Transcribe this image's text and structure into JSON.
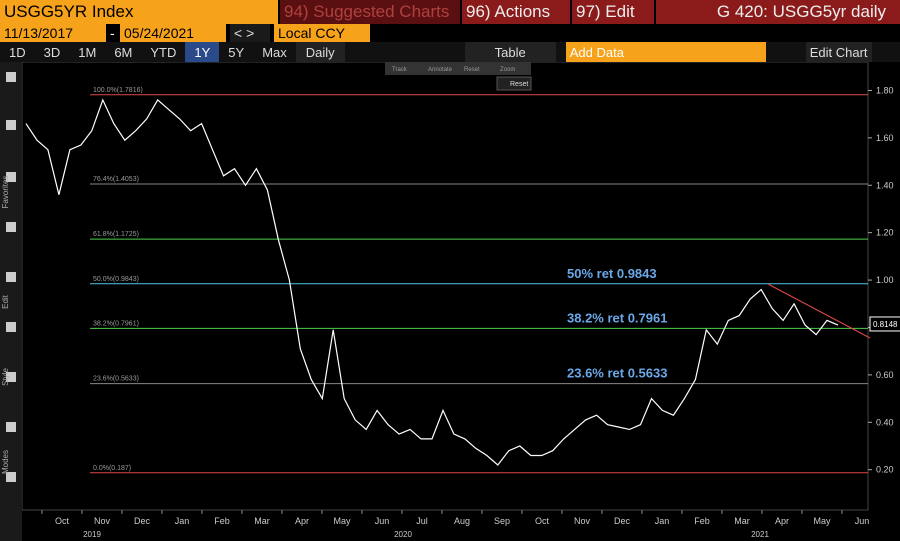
{
  "toolbar": {
    "ticker": "USGG5YR Index",
    "suggested": "94) Suggested Charts",
    "actions": "96) Actions",
    "edit": "97) Edit",
    "title": "G 420: USGG5yr daily",
    "start": "11/13/2017",
    "dash": "-",
    "end": "05/24/2021",
    "currency": "Local CCY",
    "periods": [
      "1D",
      "3D",
      "1M",
      "6M",
      "YTD",
      "1Y",
      "5Y",
      "Max"
    ],
    "freq": "Daily",
    "table": "Table",
    "add": "Add Data",
    "edit_chart": "Edit Chart"
  },
  "sidebar": [
    "Favorites",
    "Edit",
    "Style",
    "Modes"
  ],
  "popup": [
    "Track",
    "Annotate",
    "Reset",
    "Zoom"
  ],
  "reset": "Reset",
  "chart_data": {
    "type": "line",
    "color": "#ffffff",
    "values": [
      1.66,
      1.59,
      1.55,
      1.36,
      1.55,
      1.57,
      1.63,
      1.76,
      1.66,
      1.59,
      1.63,
      1.68,
      1.76,
      1.72,
      1.68,
      1.63,
      1.66,
      1.55,
      1.44,
      1.47,
      1.4,
      1.47,
      1.38,
      1.17,
      1.0,
      0.71,
      0.58,
      0.5,
      0.79,
      0.5,
      0.41,
      0.37,
      0.45,
      0.39,
      0.35,
      0.37,
      0.33,
      0.33,
      0.45,
      0.35,
      0.33,
      0.29,
      0.26,
      0.22,
      0.28,
      0.3,
      0.26,
      0.26,
      0.28,
      0.33,
      0.37,
      0.41,
      0.43,
      0.39,
      0.38,
      0.37,
      0.39,
      0.5,
      0.45,
      0.43,
      0.5,
      0.58,
      0.79,
      0.73,
      0.83,
      0.85,
      0.92,
      0.96,
      0.88,
      0.83,
      0.9,
      0.81,
      0.77,
      0.83,
      0.81
    ],
    "ylim": [
      0.03,
      1.92
    ],
    "yticks": [
      {
        "value": 0.2,
        "label": "0.20"
      },
      {
        "value": 0.4,
        "label": "0.40"
      },
      {
        "value": 0.6,
        "label": "0.60"
      },
      {
        "value": 0.8,
        "label": "0.80"
      },
      {
        "value": 1.0,
        "label": "1.00"
      },
      {
        "value": 1.2,
        "label": "1.20"
      },
      {
        "value": 1.4,
        "label": "1.40"
      },
      {
        "value": 1.6,
        "label": "1.60"
      },
      {
        "value": 1.8,
        "label": "1.80"
      }
    ],
    "last_value": {
      "value": 0.8148,
      "label": "0.8148"
    },
    "levels": [
      {
        "name": "100.0%(1.7816)",
        "value": 1.7816,
        "color": "#e04848"
      },
      {
        "name": "76.4%(1.4053)",
        "value": 1.4053,
        "color": "#888888"
      },
      {
        "name": "61.8%(1.1725)",
        "value": 1.1725,
        "color": "#4cd04c"
      },
      {
        "name": "50.0%(0.9843)",
        "value": 0.9843,
        "color": "#4cc8e8"
      },
      {
        "name": "38.2%(0.7961)",
        "value": 0.7961,
        "color": "#4cd04c"
      },
      {
        "name": "23.6%(0.5633)",
        "value": 0.5633,
        "color": "#888888"
      },
      {
        "name": "0.0%(0.187)",
        "value": 0.187,
        "color": "#e04848"
      }
    ],
    "annotations": [
      {
        "text": "50% ret 0.9843",
        "value": 0.9843
      },
      {
        "text": "38.2% ret 0.7961",
        "value": 0.7961
      },
      {
        "text": "23.6% ret 0.5633",
        "value": 0.5633
      }
    ],
    "months": [
      "Oct",
      "Nov",
      "Dec",
      "Jan",
      "Feb",
      "Mar",
      "Apr",
      "May",
      "Jun",
      "Jul",
      "Aug",
      "Sep",
      "Oct",
      "Nov",
      "Dec",
      "Jan",
      "Feb",
      "Mar",
      "Apr",
      "May",
      "Jun"
    ],
    "years": [
      "2019",
      "2020",
      "2021"
    ]
  }
}
